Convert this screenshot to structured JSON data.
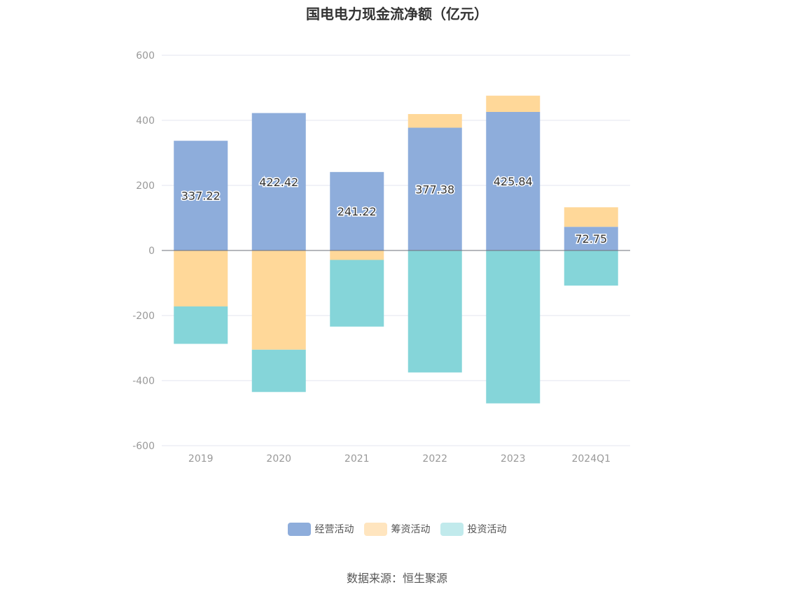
{
  "chart_data": {
    "type": "bar",
    "stacked": true,
    "title": "国电电力现金流净额（亿元）",
    "categories": [
      "2019",
      "2020",
      "2021",
      "2022",
      "2023",
      "2024Q1"
    ],
    "ylim": [
      -600,
      600
    ],
    "yticks": [
      600,
      400,
      200,
      0,
      -200,
      -400,
      -600
    ],
    "grid": true,
    "legend_position": "bottom",
    "series": [
      {
        "name": "经营活动",
        "color": "#8eaddb",
        "values": [
          337.22,
          422.42,
          241.22,
          377.38,
          425.84,
          72.75
        ],
        "show_labels": true
      },
      {
        "name": "筹资活动",
        "color": "#ffd899",
        "values": [
          -172,
          -305,
          -29,
          42,
          50,
          60
        ],
        "show_labels": false
      },
      {
        "name": "投资活动",
        "color": "#85d5d9",
        "values": [
          -115,
          -130,
          -205,
          -375,
          -470,
          -108
        ],
        "show_labels": false
      }
    ],
    "legend_swatch_colors": [
      "#8eaddb",
      "#ffe5bf",
      "#c1eaec"
    ]
  },
  "source": "数据来源：恒生聚源"
}
